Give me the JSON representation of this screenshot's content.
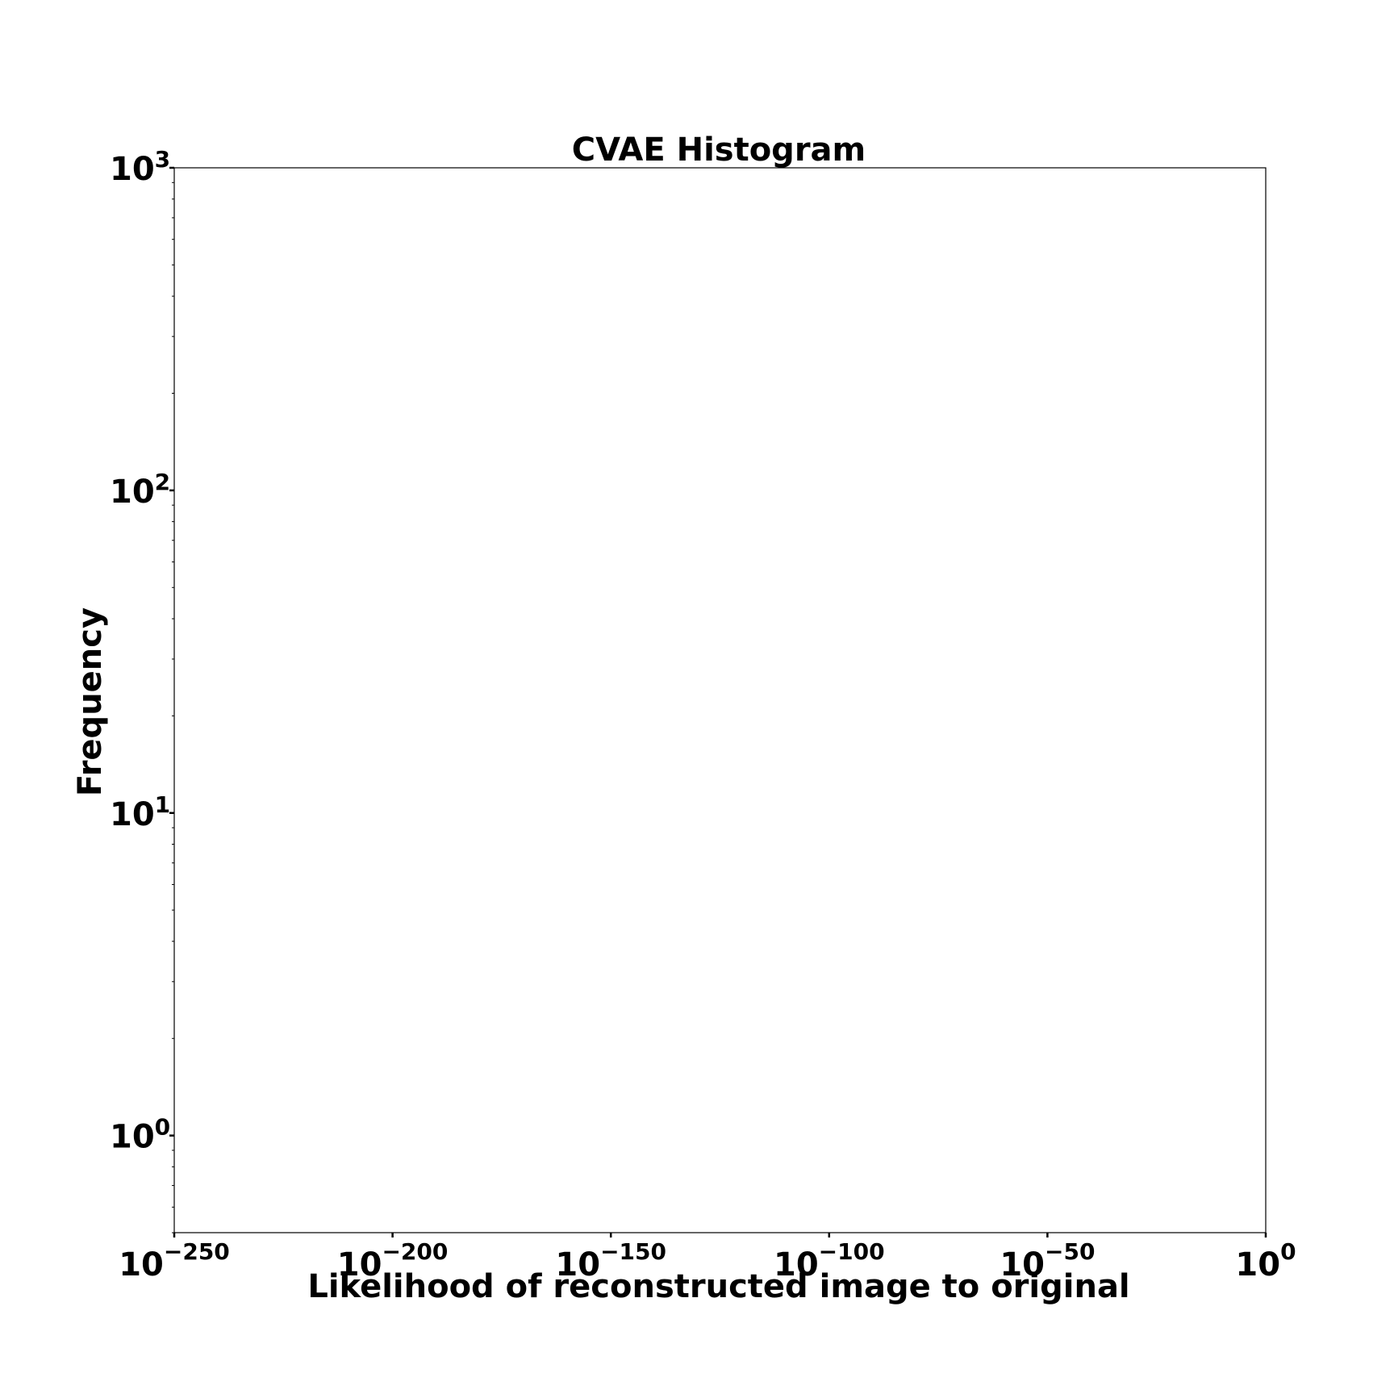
{
  "chart_data": {
    "type": "bar",
    "title": "CVAE Histogram",
    "xlabel": "Likelihood of reconstructed image to original",
    "ylabel": "Frequency",
    "xscale": "log",
    "yscale": "log",
    "xlim_exponent": [
      -250,
      0
    ],
    "ylim": [
      0.5,
      1000
    ],
    "x_ticks": [
      {
        "base": "10",
        "exp": "−250",
        "value": -250
      },
      {
        "base": "10",
        "exp": "−200",
        "value": -200
      },
      {
        "base": "10",
        "exp": "−150",
        "value": -150
      },
      {
        "base": "10",
        "exp": "−100",
        "value": -100
      },
      {
        "base": "10",
        "exp": "−50",
        "value": -50
      },
      {
        "base": "10",
        "exp": "0",
        "value": 0
      }
    ],
    "y_ticks": [
      {
        "base": "10",
        "exp": "0",
        "value": 1
      },
      {
        "base": "10",
        "exp": "1",
        "value": 10
      },
      {
        "base": "10",
        "exp": "2",
        "value": 100
      },
      {
        "base": "10",
        "exp": "3",
        "value": 1000
      }
    ],
    "series": [],
    "grid": false
  }
}
